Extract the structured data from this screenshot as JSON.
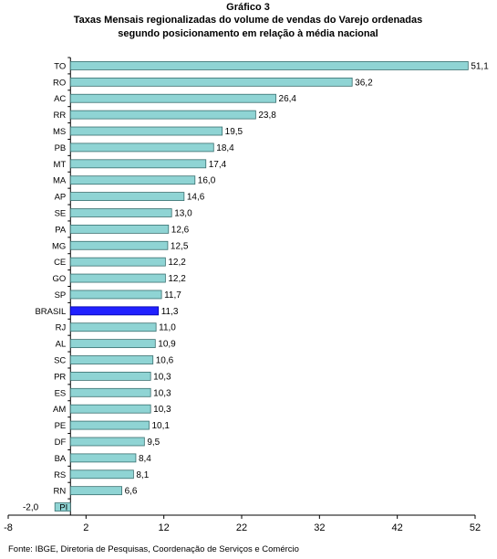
{
  "chart_data": {
    "type": "bar",
    "orientation": "horizontal",
    "title": "Gráfico 3",
    "subtitle_lines": [
      "Taxas Mensais regionalizadas do volume de vendas do Varejo ordenadas",
      "segundo posicionamento em relação à média nacional"
    ],
    "categories": [
      "TO",
      "RO",
      "AC",
      "RR",
      "MS",
      "PB",
      "MT",
      "MA",
      "AP",
      "SE",
      "PA",
      "MG",
      "CE",
      "GO",
      "SP",
      "BRASIL",
      "RJ",
      "AL",
      "SC",
      "PR",
      "ES",
      "AM",
      "PE",
      "DF",
      "BA",
      "RS",
      "RN",
      "PI"
    ],
    "values": [
      51.1,
      36.2,
      26.4,
      23.8,
      19.5,
      18.4,
      17.4,
      16.0,
      14.6,
      13.0,
      12.6,
      12.5,
      12.2,
      12.2,
      11.7,
      11.3,
      11.0,
      10.9,
      10.6,
      10.3,
      10.3,
      10.3,
      10.1,
      9.5,
      8.4,
      8.1,
      6.6,
      -2.0
    ],
    "value_labels": [
      "51,1",
      "36,2",
      "26,4",
      "23,8",
      "19,5",
      "18,4",
      "17,4",
      "16,0",
      "14,6",
      "13,0",
      "12,6",
      "12,5",
      "12,2",
      "12,2",
      "11,7",
      "11,3",
      "11,0",
      "10,9",
      "10,6",
      "10,3",
      "10,3",
      "10,3",
      "10,1",
      "9,5",
      "8,4",
      "8,1",
      "6,6",
      "-2,0"
    ],
    "highlight_category": "BRASIL",
    "xticks": [
      -8,
      2,
      12,
      22,
      32,
      42,
      52
    ],
    "xlim": [
      -8,
      52
    ],
    "grid": false,
    "colors": {
      "bar_fill": "#8fd4d4",
      "bar_edge": "#3a6f6f",
      "highlight_fill": "#2020ff",
      "highlight_edge": "#0000aa"
    }
  },
  "source": "Fonte: IBGE, Diretoria de Pesquisas, Coordenação de Serviços e Comércio"
}
